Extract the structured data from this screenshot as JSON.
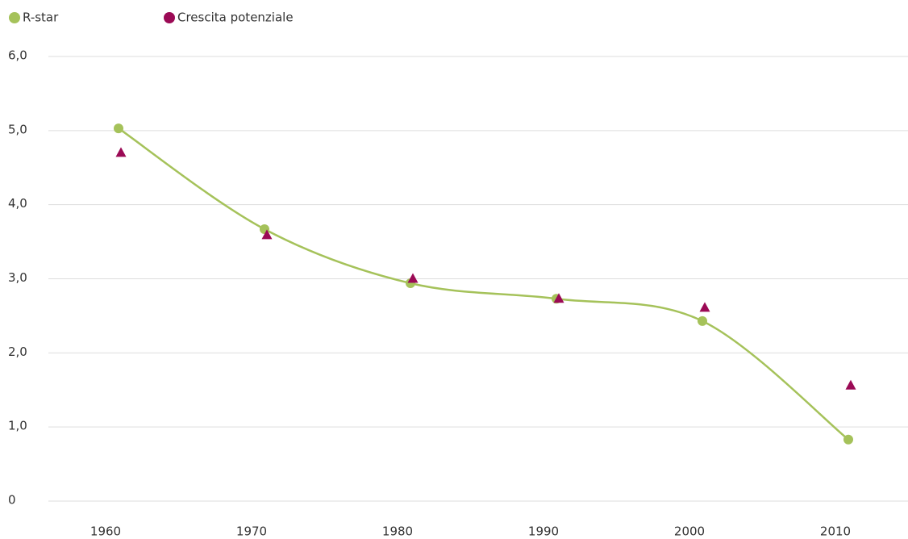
{
  "chart_data": {
    "type": "line",
    "categories": [
      "1960",
      "1970",
      "1980",
      "1990",
      "2000",
      "2010"
    ],
    "series": [
      {
        "name": "R-star",
        "color": "#a5c25a",
        "marker": "circle",
        "values": [
          5.03,
          3.67,
          2.94,
          2.73,
          2.43,
          0.83
        ]
      },
      {
        "name": "Crescita potenziale",
        "color": "#9b0a55",
        "marker": "triangle",
        "values": [
          4.7,
          3.59,
          3.0,
          2.73,
          2.61,
          1.56
        ]
      }
    ],
    "ylim": [
      0,
      6
    ],
    "yticks": [
      0,
      {
        "value": 1,
        "label": "1,0"
      },
      {
        "value": 2,
        "label": "2,0"
      },
      {
        "value": 3,
        "label": "3,0"
      },
      {
        "value": 4,
        "label": "4,0"
      },
      {
        "value": 5,
        "label": "5,0"
      },
      {
        "value": 6,
        "label": "6,0"
      }
    ],
    "grid": true,
    "legend": "top-left"
  }
}
